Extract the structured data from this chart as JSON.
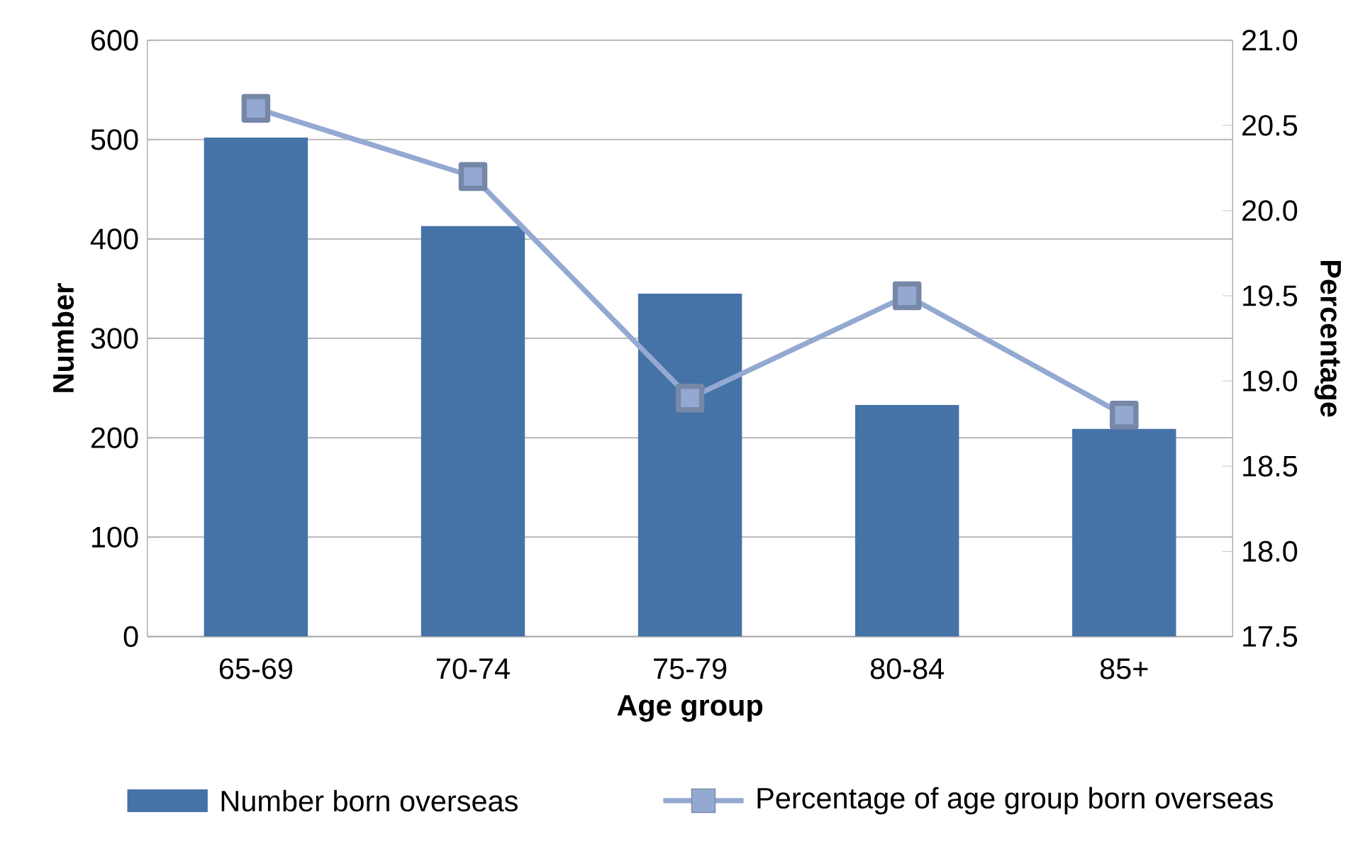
{
  "chart_data": {
    "type": "bar",
    "xlabel": "Age group",
    "ylabel": "Number",
    "y2label": "Percentage",
    "categories": [
      "65-69",
      "70-74",
      "75-79",
      "80-84",
      "85+"
    ],
    "series": [
      {
        "name": "Number born overseas",
        "color": "#4572a7",
        "values": [
          502,
          413,
          345,
          233,
          209
        ]
      },
      {
        "name": "Percentage of age group born overseas",
        "type": "line",
        "axis": "y2",
        "color": "#94a9d1",
        "marker": "square",
        "values": [
          20.6,
          20.2,
          18.9,
          19.5,
          18.8
        ]
      }
    ],
    "ylim": [
      0,
      600
    ],
    "yticks": [
      0,
      100,
      200,
      300,
      400,
      500,
      600
    ],
    "y2lim": [
      17.5,
      21.0
    ],
    "y2ticks": [
      {
        "value": 17.5,
        "label": "17.5"
      },
      {
        "value": 18.0,
        "label": "18.0"
      },
      {
        "value": 18.5,
        "label": "18.5"
      },
      {
        "value": 19.0,
        "label": "19.0"
      },
      {
        "value": 19.5,
        "label": "19.5"
      },
      {
        "value": 20.0,
        "label": "20.0"
      },
      {
        "value": 20.5,
        "label": "20.5"
      },
      {
        "value": 21.0,
        "label": "21.0"
      }
    ],
    "grid": "y",
    "legend": "bottom"
  }
}
